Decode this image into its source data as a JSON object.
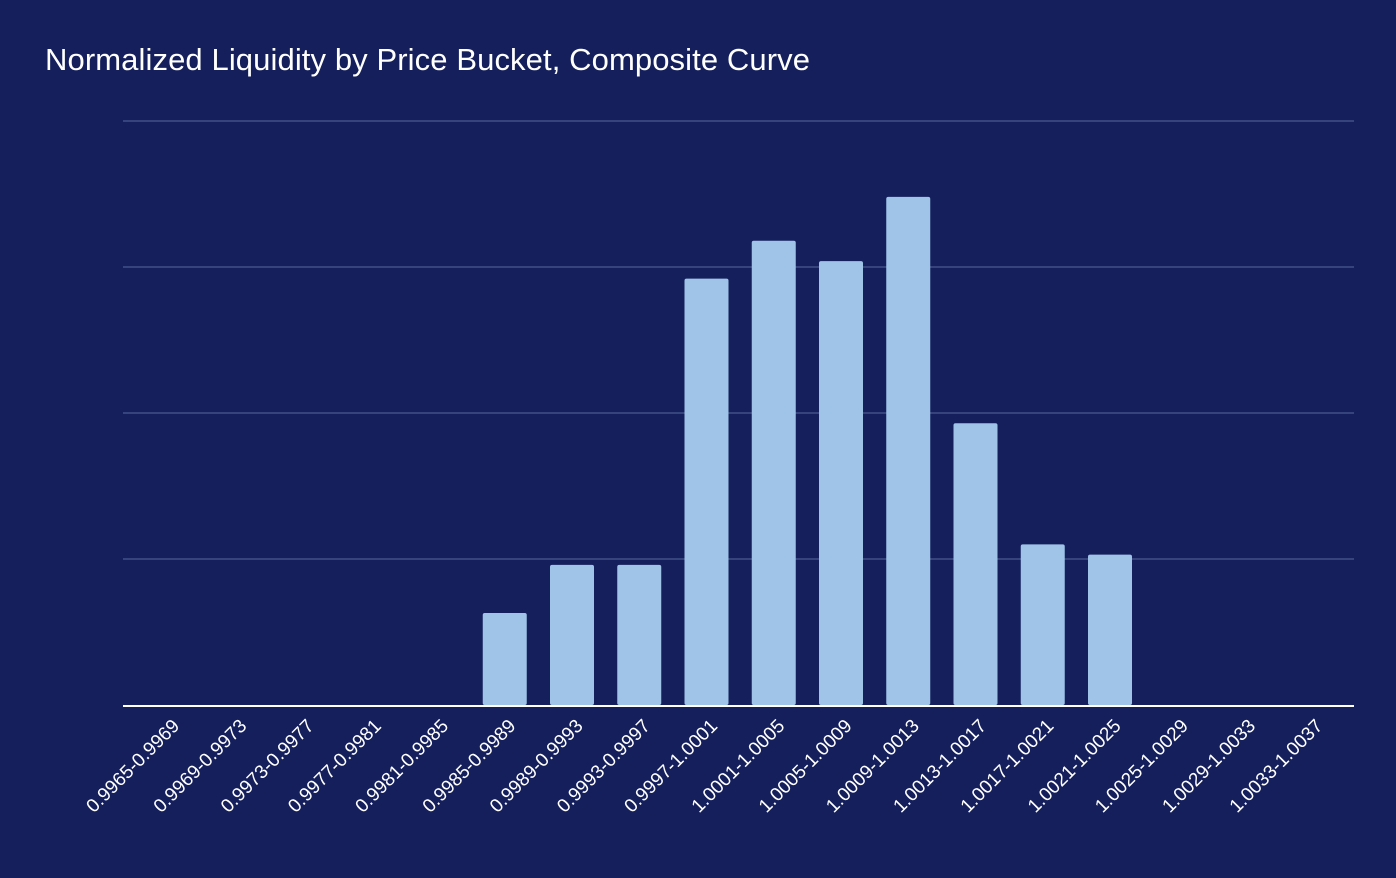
{
  "chart_data": {
    "type": "bar",
    "title": "Normalized Liquidity by Price Bucket, Composite Curve",
    "xlabel": "",
    "ylabel": "",
    "ylim": [
      0,
      4
    ],
    "grid": true,
    "y_tick_labels_shown": false,
    "legend": "none",
    "bar_color": "#a0c4e8",
    "background_color": "#141f5c",
    "categories": [
      "0.9965-0.9969",
      "0.9969-0.9973",
      "0.9973-0.9977",
      "0.9977-0.9981",
      "0.9981-0.9985",
      "0.9985-0.9989",
      "0.9989-0.9993",
      "0.9993-0.9997",
      "0.9997-1.0001",
      "1.0001-1.0005",
      "1.0005-1.0009",
      "1.0009-1.0013",
      "1.0013-1.0017",
      "1.0017-1.0021",
      "1.0021-1.0025",
      "1.0025-1.0029",
      "1.0029-1.0033",
      "1.0033-1.0037"
    ],
    "values": [
      0,
      0,
      0,
      0,
      0,
      0.63,
      0.96,
      0.96,
      2.92,
      3.18,
      3.04,
      3.48,
      1.93,
      1.1,
      1.03,
      0,
      0,
      0
    ]
  }
}
